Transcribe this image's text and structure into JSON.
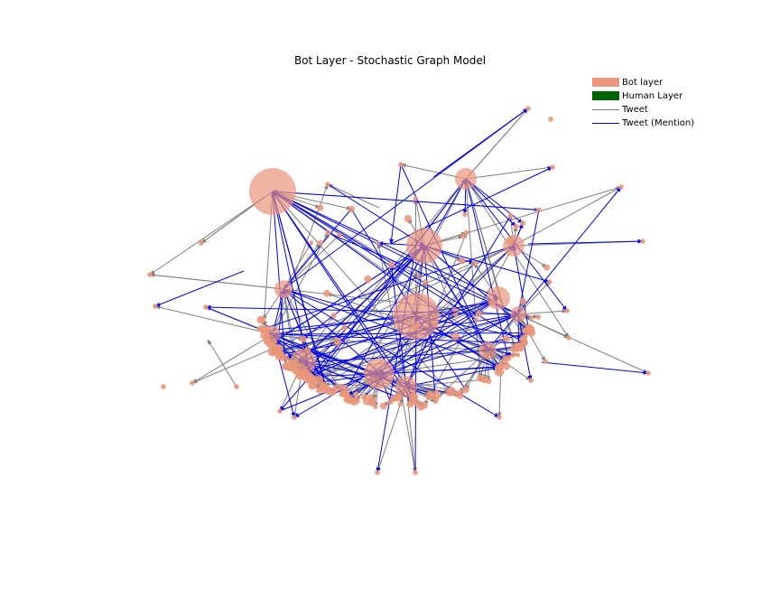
{
  "title": "Bot Layer - Stochastic Graph Model",
  "legend": [
    {
      "label": "Bot layer",
      "kind": "patch",
      "color": "#e9967a"
    },
    {
      "label": "Human Layer",
      "kind": "patch",
      "color": "#006400"
    },
    {
      "label": "Tweet",
      "kind": "line",
      "color": "#808080"
    },
    {
      "label": "Tweet (Mention)",
      "kind": "line",
      "color": "#0000ee"
    }
  ],
  "colors": {
    "node": "#e9967a",
    "tweet_edge": "#808080",
    "mention_edge": "#0000ee"
  }
}
